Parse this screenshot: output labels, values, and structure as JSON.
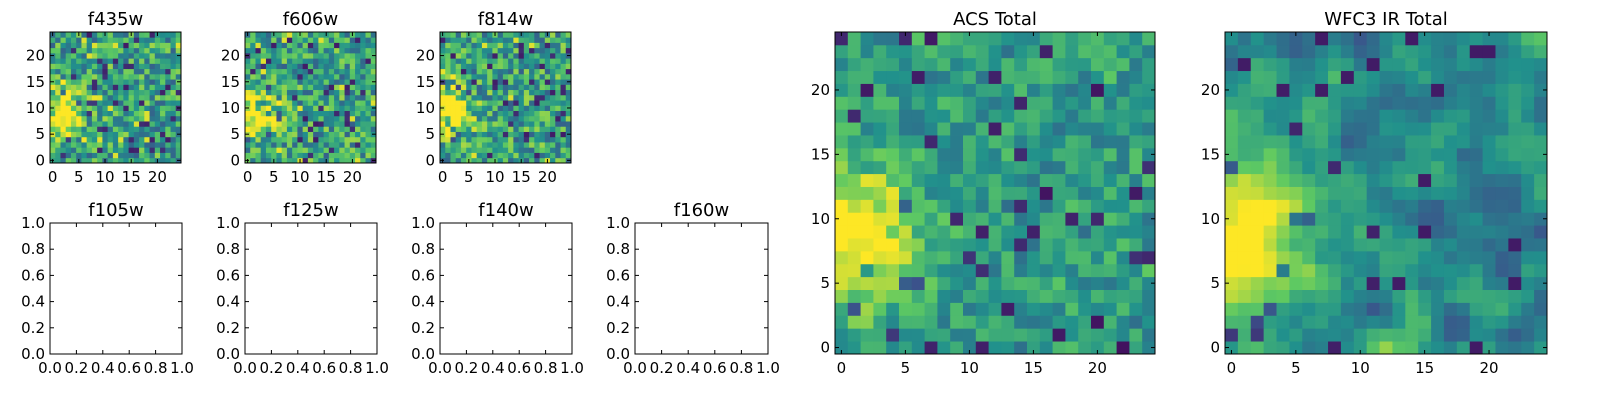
{
  "figure": {
    "background": "#ffffff"
  },
  "colormap": {
    "name": "viridis",
    "stops": [
      "#440154",
      "#3b528b",
      "#21918c",
      "#5ec962",
      "#fde725"
    ]
  },
  "chart_data": [
    {
      "type": "heatmap",
      "title": "f435w",
      "size": 25,
      "xlim": [
        -0.5,
        24.5
      ],
      "ylim": [
        -0.5,
        24.5
      ],
      "xticks": [
        0,
        5,
        10,
        15,
        20
      ],
      "yticks": [
        0,
        5,
        10,
        15,
        20
      ],
      "pattern": "noisy",
      "blob": {
        "x": 1,
        "y": 9,
        "r": 3
      }
    },
    {
      "type": "heatmap",
      "title": "f606w",
      "size": 25,
      "xlim": [
        -0.5,
        24.5
      ],
      "ylim": [
        -0.5,
        24.5
      ],
      "xticks": [
        0,
        5,
        10,
        15,
        20
      ],
      "yticks": [
        0,
        5,
        10,
        15,
        20
      ],
      "pattern": "noisy",
      "blob": {
        "x": 1,
        "y": 9,
        "r": 3
      }
    },
    {
      "type": "heatmap",
      "title": "f814w",
      "size": 25,
      "xlim": [
        -0.5,
        24.5
      ],
      "ylim": [
        -0.5,
        24.5
      ],
      "xticks": [
        0,
        5,
        10,
        15,
        20
      ],
      "yticks": [
        0,
        5,
        10,
        15,
        20
      ],
      "pattern": "noisy",
      "blob": {
        "x": 1,
        "y": 9,
        "r": 3
      }
    },
    {
      "type": "empty",
      "title": "f105w",
      "xlim": [
        0,
        1
      ],
      "ylim": [
        0,
        1
      ],
      "xticks": [
        "0.0",
        "0.2",
        "0.4",
        "0.6",
        "0.8",
        "1.0"
      ],
      "yticks": [
        "0.0",
        "0.2",
        "0.4",
        "0.6",
        "0.8",
        "1.0"
      ]
    },
    {
      "type": "empty",
      "title": "f125w",
      "xlim": [
        0,
        1
      ],
      "ylim": [
        0,
        1
      ],
      "xticks": [
        "0.0",
        "0.2",
        "0.4",
        "0.6",
        "0.8",
        "1.0"
      ],
      "yticks": [
        "0.0",
        "0.2",
        "0.4",
        "0.6",
        "0.8",
        "1.0"
      ]
    },
    {
      "type": "empty",
      "title": "f140w",
      "xlim": [
        0,
        1
      ],
      "ylim": [
        0,
        1
      ],
      "xticks": [
        "0.0",
        "0.2",
        "0.4",
        "0.6",
        "0.8",
        "1.0"
      ],
      "yticks": [
        "0.0",
        "0.2",
        "0.4",
        "0.6",
        "0.8",
        "1.0"
      ]
    },
    {
      "type": "empty",
      "title": "f160w",
      "xlim": [
        0,
        1
      ],
      "ylim": [
        0,
        1
      ],
      "xticks": [
        "0.0",
        "0.2",
        "0.4",
        "0.6",
        "0.8",
        "1.0"
      ],
      "yticks": [
        "0.0",
        "0.2",
        "0.4",
        "0.6",
        "0.8",
        "1.0"
      ]
    },
    {
      "type": "heatmap",
      "title": "ACS Total",
      "size": 25,
      "xlim": [
        -0.5,
        24.5
      ],
      "ylim": [
        -0.5,
        24.5
      ],
      "xticks": [
        0,
        5,
        10,
        15,
        20
      ],
      "yticks": [
        0,
        5,
        10,
        15,
        20
      ],
      "pattern": "mixed",
      "blob": {
        "x": 1,
        "y": 8.5,
        "r": 3.5
      }
    },
    {
      "type": "heatmap",
      "title": "WFC3 IR Total",
      "size": 25,
      "xlim": [
        -0.5,
        24.5
      ],
      "ylim": [
        -0.5,
        24.5
      ],
      "xticks": [
        0,
        5,
        10,
        15,
        20
      ],
      "yticks": [
        0,
        5,
        10,
        15,
        20
      ],
      "pattern": "smooth",
      "blob": {
        "x": 1,
        "y": 8.5,
        "r": 4
      }
    }
  ]
}
